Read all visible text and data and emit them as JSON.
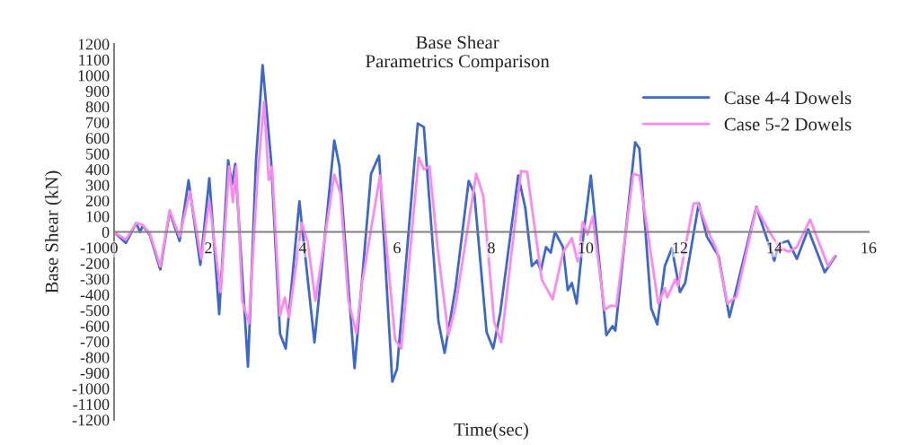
{
  "chart_data": {
    "type": "line",
    "title": "Base Shear",
    "subtitle": "Parametrics Comparison",
    "xlabel": "Time(sec)",
    "ylabel": "Base Shear (kN)",
    "xlim": [
      0,
      16
    ],
    "xticks": [
      0,
      2,
      4,
      6,
      8,
      10,
      12,
      14,
      16
    ],
    "ylim": [
      -1200,
      1200
    ],
    "yticks": [
      -1200,
      -1100,
      -1000,
      -900,
      -800,
      -700,
      -600,
      -500,
      -400,
      -300,
      -200,
      -100,
      0,
      100,
      200,
      300,
      400,
      500,
      600,
      700,
      800,
      900,
      1000,
      1100,
      1200
    ],
    "grid": false,
    "legend": "top right",
    "marker": "none",
    "line_style": "solid",
    "series": [
      {
        "name": "Case 4-4 Dowels",
        "color": "#3a67d0",
        "x": [
          0,
          0.25,
          0.47,
          0.55,
          0.61,
          0.76,
          0.98,
          1.18,
          1.3,
          1.39,
          1.58,
          1.83,
          2.02,
          2.23,
          2.42,
          2.5,
          2.57,
          2.84,
          3.01,
          3.15,
          3.33,
          3.52,
          3.64,
          3.93,
          4.25,
          4.67,
          4.78,
          5.1,
          5.45,
          5.62,
          5.9,
          6.0,
          6.44,
          6.57,
          6.88,
          7.01,
          7.24,
          7.52,
          7.64,
          7.9,
          8.04,
          8.19,
          8.57,
          8.72,
          8.86,
          8.97,
          9.05,
          9.16,
          9.26,
          9.35,
          9.52,
          9.62,
          9.71,
          9.81,
          9.96,
          10.11,
          10.44,
          10.57,
          10.63,
          11.05,
          11.14,
          11.39,
          11.52,
          11.68,
          11.83,
          12.0,
          12.11,
          12.4,
          12.57,
          12.82,
          13.05,
          13.62,
          14.0,
          14.11,
          14.29,
          14.48,
          14.72,
          15.07,
          15.3
        ],
        "values": [
          0,
          -70,
          57,
          0,
          40,
          -20,
          -240,
          130,
          20,
          -57,
          330,
          -210,
          343,
          -525,
          458,
          304,
          435,
          -860,
          458,
          1065,
          458,
          -650,
          -745,
          195,
          -705,
          584,
          418,
          -870,
          372,
          487,
          -956,
          -876,
          693,
          670,
          -573,
          -773,
          -360,
          326,
          246,
          -640,
          -745,
          -515,
          360,
          155,
          -218,
          -183,
          -246,
          -97,
          -132,
          0,
          -97,
          -372,
          -326,
          -458,
          0,
          360,
          -659,
          -601,
          -630,
          573,
          533,
          -487,
          -590,
          -218,
          -103,
          -384,
          -326,
          183,
          -29,
          -155,
          -544,
          160,
          -183,
          -74,
          -57,
          -172,
          17,
          -258,
          -155
        ]
      },
      {
        "name": "Case 5-2 Dowels",
        "color": "#ff88f0",
        "x": [
          0,
          0.25,
          0.47,
          0.6,
          0.76,
          0.98,
          1.18,
          1.3,
          1.39,
          1.61,
          1.85,
          2.02,
          2.26,
          2.44,
          2.52,
          2.59,
          2.72,
          2.86,
          3.04,
          3.18,
          3.28,
          3.35,
          3.52,
          3.62,
          3.71,
          3.98,
          4.11,
          4.27,
          4.67,
          4.8,
          4.97,
          5.14,
          5.26,
          5.64,
          5.96,
          6.09,
          6.46,
          6.57,
          6.69,
          6.86,
          7.09,
          7.24,
          7.68,
          7.83,
          8.06,
          8.21,
          8.63,
          8.76,
          9.07,
          9.3,
          9.52,
          9.71,
          9.83,
          9.94,
          10.04,
          10.15,
          10.4,
          10.53,
          10.65,
          11.01,
          11.14,
          11.54,
          11.68,
          11.73,
          11.9,
          11.96,
          12.29,
          12.38,
          12.63,
          12.78,
          13.01,
          13.2,
          13.62,
          13.9,
          14.1,
          14.3,
          14.48,
          14.76,
          15.14,
          15.28
        ],
        "values": [
          0,
          -50,
          57,
          45,
          -10,
          -220,
          140,
          40,
          -30,
          258,
          -172,
          200,
          -384,
          418,
          190,
          418,
          -440,
          -584,
          343,
          830,
          332,
          418,
          -533,
          -418,
          -544,
          57,
          -69,
          -440,
          366,
          246,
          -440,
          -647,
          -326,
          360,
          -687,
          -745,
          475,
          400,
          418,
          -97,
          -659,
          -475,
          372,
          229,
          -573,
          -705,
          389,
          384,
          -304,
          -430,
          -132,
          -40,
          -189,
          63,
          -17,
          97,
          -498,
          -470,
          -475,
          372,
          360,
          -458,
          -360,
          -418,
          -304,
          -344,
          183,
          183,
          -17,
          -115,
          -458,
          -412,
          155,
          0,
          -97,
          -126,
          -97,
          80,
          -218,
          -155
        ]
      }
    ]
  }
}
